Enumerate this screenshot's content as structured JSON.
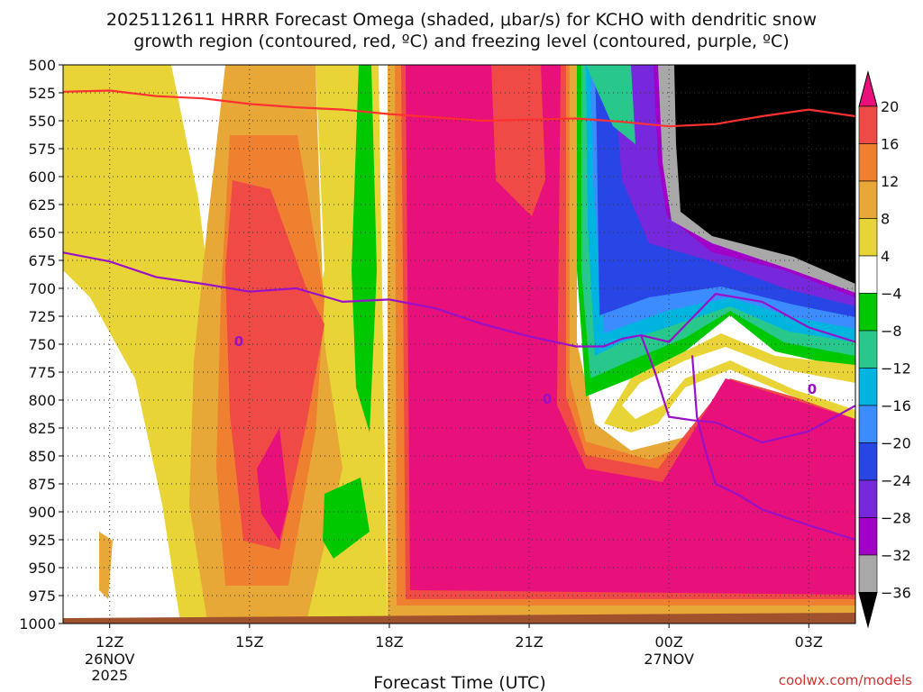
{
  "chart_data": {
    "type": "heatmap",
    "title_line1": "2025112611 HRRR Forecast Omega (shaded, μbar/s) for KCHO with dendritic snow",
    "title_line2": "growth region (contoured, red, ºC) and freezing level (contoured, purple, ºC)",
    "xlabel": "Forecast Time (UTC)",
    "x_range": [
      11,
      28
    ],
    "x_ticks": [
      {
        "label": "12Z",
        "hour": 12,
        "sub1": "26NOV",
        "sub2": "2025"
      },
      {
        "label": "15Z",
        "hour": 15,
        "sub1": "",
        "sub2": ""
      },
      {
        "label": "18Z",
        "hour": 18,
        "sub1": "",
        "sub2": ""
      },
      {
        "label": "21Z",
        "hour": 21,
        "sub1": "",
        "sub2": ""
      },
      {
        "label": "00Z",
        "hour": 24,
        "sub1": "27NOV",
        "sub2": ""
      },
      {
        "label": "03Z",
        "hour": 27,
        "sub1": "",
        "sub2": ""
      }
    ],
    "y_range": [
      500,
      1000
    ],
    "y_ticks": [
      500,
      525,
      550,
      575,
      600,
      625,
      650,
      675,
      700,
      725,
      750,
      775,
      800,
      825,
      850,
      875,
      900,
      925,
      950,
      975,
      1000
    ],
    "colorbar": {
      "labels": [
        "20",
        "16",
        "12",
        "8",
        "4",
        "−4",
        "−8",
        "−12",
        "−16",
        "−20",
        "−24",
        "−28",
        "−32",
        "−36"
      ],
      "colors": [
        "#e8107a",
        "#f04a46",
        "#ee8030",
        "#e8a838",
        "#e8d436",
        "#ffffff",
        "#00c800",
        "#28c88c",
        "#00b4e0",
        "#3c8cff",
        "#2846e6",
        "#7828dc",
        "#a000c8",
        "#a8a8a8",
        "#000000"
      ]
    },
    "red_line_label": "dendritic snow growth region (red)",
    "red_line": {
      "hours": [
        11,
        12,
        13,
        14,
        15,
        16,
        17,
        18,
        19,
        20,
        21,
        22,
        23,
        24,
        25,
        26,
        27,
        28
      ],
      "pressure": [
        524,
        523,
        528,
        530,
        535,
        538,
        540,
        544,
        547,
        550,
        549,
        548,
        551,
        555,
        553,
        546,
        540,
        546
      ]
    },
    "purple_line_label": "freezing level (purple)",
    "purple_line": {
      "hours": [
        11,
        12,
        13,
        14,
        15,
        16,
        17,
        18,
        19,
        20,
        21,
        22,
        22.6,
        23,
        23.4,
        24,
        25,
        26,
        27,
        28
      ],
      "pressure": [
        668,
        676,
        690,
        696,
        703,
        700,
        712,
        710,
        718,
        732,
        743,
        752,
        752,
        745,
        742,
        748,
        705,
        712,
        735,
        748
      ]
    },
    "purple_line2": {
      "hours": [
        23.4,
        23.7,
        24,
        24.5,
        25,
        26,
        27,
        28
      ],
      "pressure": [
        742,
        775,
        815,
        818,
        820,
        838,
        828,
        805
      ]
    },
    "purple_line3": {
      "hours": [
        24.5,
        24.6,
        24.8,
        25,
        25.5,
        26,
        27,
        28
      ],
      "pressure": [
        760,
        815,
        848,
        875,
        885,
        898,
        912,
        925
      ]
    },
    "contour_zero_label": "0",
    "omega_note": "shaded omega field (μbar/s)"
  },
  "credit": "coolwx.com/models"
}
